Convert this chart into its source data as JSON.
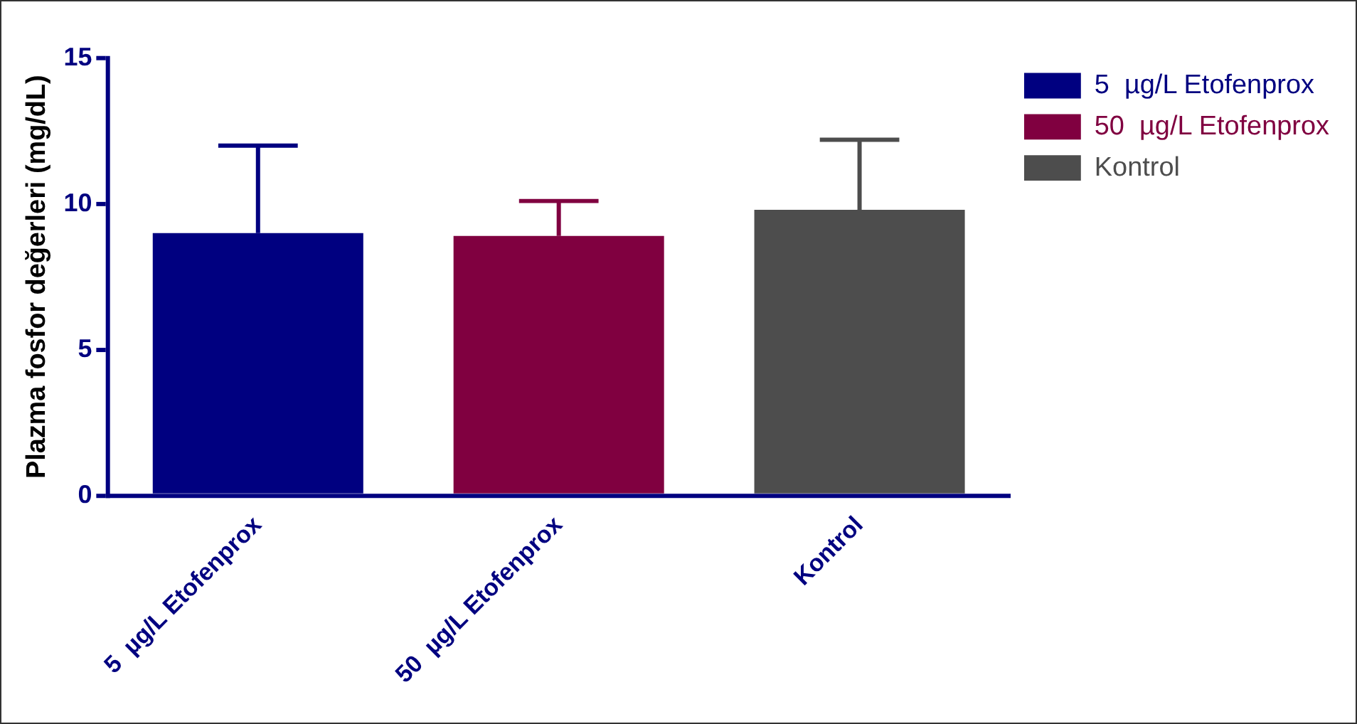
{
  "chart_data": {
    "type": "bar",
    "ylabel": "Plazma fosfor değerleri (mg/dL)",
    "categories": [
      "5  µg/L Etofenprox",
      "50  µg/L Etofenprox",
      "Kontrol"
    ],
    "series": [
      {
        "name": "5  µg/L Etofenprox",
        "color": "#000080",
        "values": [
          9.0,
          null,
          null
        ],
        "errors": [
          [
            9.0,
            12.0
          ],
          null,
          null
        ]
      },
      {
        "name": "50  µg/L Etofenprox",
        "color": "#800040",
        "values": [
          null,
          8.9,
          null
        ],
        "errors": [
          null,
          [
            8.9,
            10.1
          ],
          null
        ]
      },
      {
        "name": "Kontrol",
        "color": "#4d4d4d",
        "values": [
          null,
          null,
          9.8
        ],
        "errors": [
          null,
          null,
          [
            9.8,
            12.2
          ]
        ]
      }
    ],
    "ylim": [
      0,
      15
    ],
    "yticks": [
      0,
      5,
      10,
      15
    ],
    "grid": false,
    "legend": "top right"
  }
}
